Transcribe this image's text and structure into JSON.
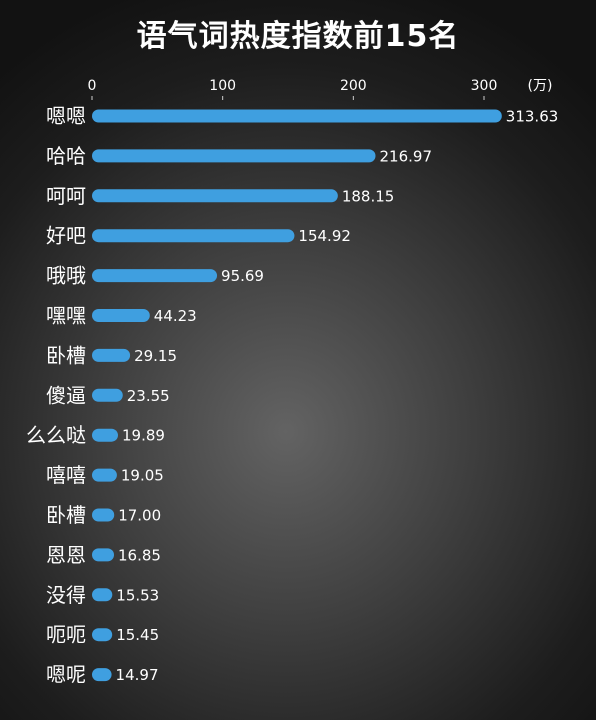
{
  "chart_data": {
    "type": "bar",
    "orientation": "horizontal",
    "title": "语气词热度指数前15名",
    "unit": "(万)",
    "xlim": [
      0,
      300
    ],
    "ticks": [
      0,
      100,
      200,
      300
    ],
    "tick_labels": [
      "0",
      "100",
      "200",
      "300"
    ],
    "grid": false,
    "bar_color": "#3f9fe0",
    "categories": [
      "嗯嗯",
      "哈哈",
      "呵呵",
      "好吧",
      "哦哦",
      "嘿嘿",
      "卧槽",
      "傻逼",
      "么么哒",
      "嘻嘻",
      "卧槽",
      "恩恩",
      "没得",
      "呃呃",
      "嗯呢"
    ],
    "values": [
      313.63,
      216.97,
      188.15,
      154.92,
      95.69,
      44.23,
      29.15,
      23.55,
      19.89,
      19.05,
      17.0,
      16.85,
      15.53,
      15.45,
      14.97
    ],
    "value_labels": [
      "313.63",
      "216.97",
      "188.15",
      "154.92",
      "95.69",
      "44.23",
      "29.15",
      "23.55",
      "19.89",
      "19.05",
      "17.00",
      "16.85",
      "15.53",
      "15.45",
      "14.97"
    ]
  }
}
